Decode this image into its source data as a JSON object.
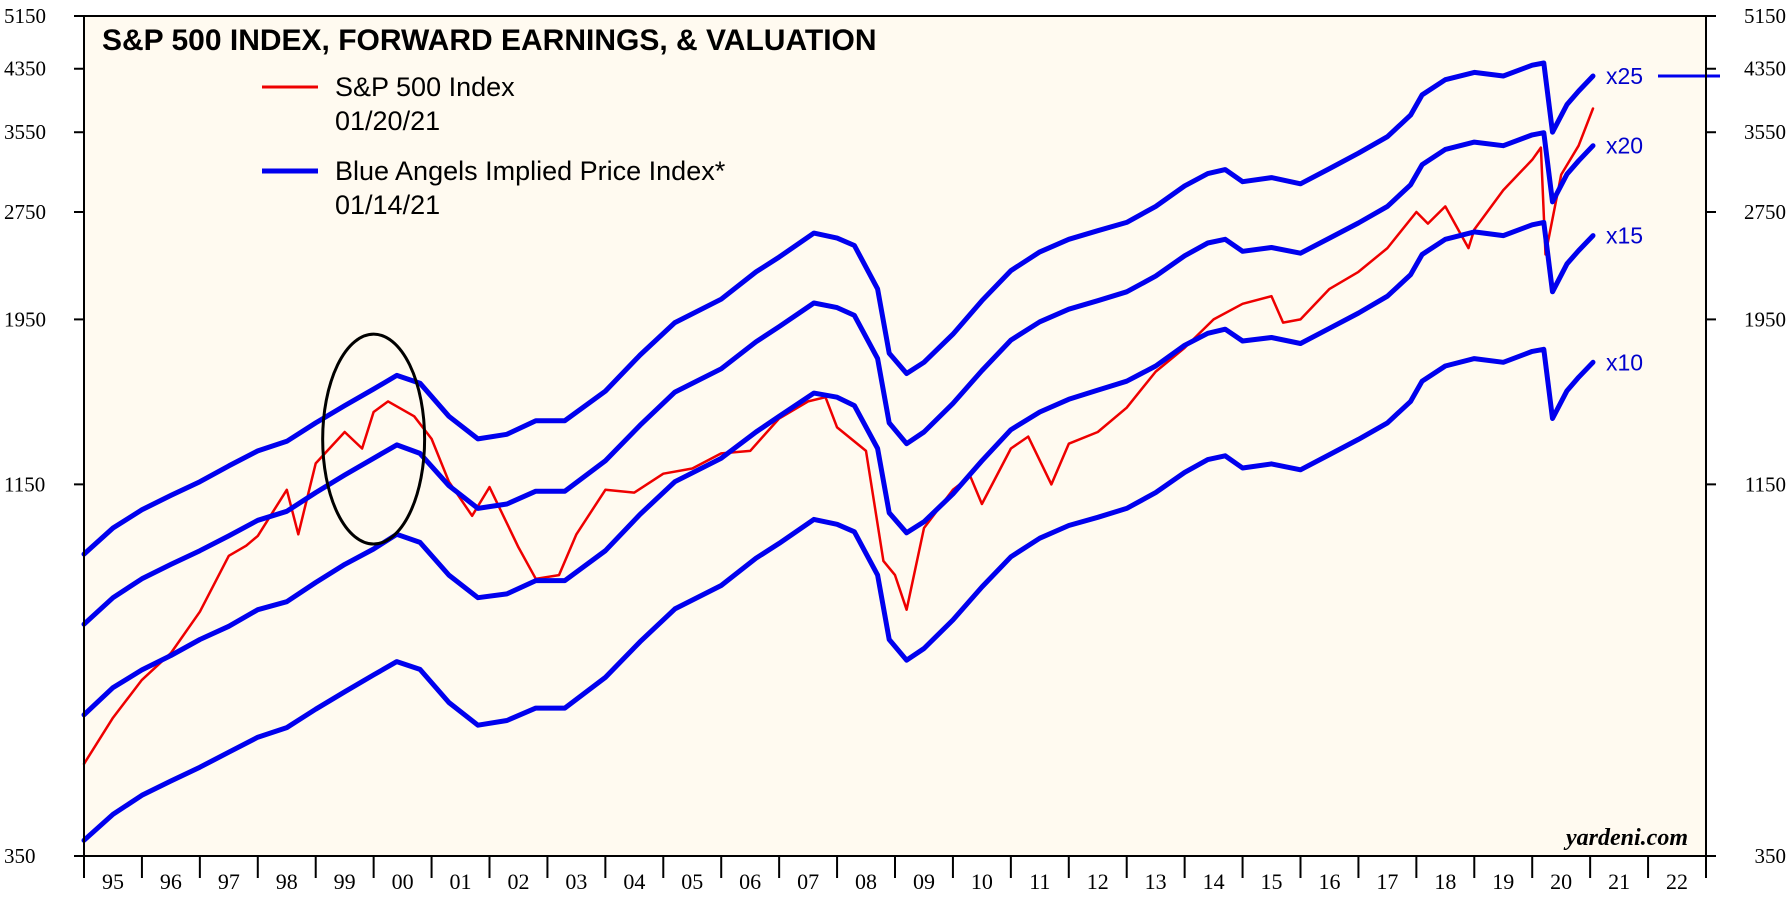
{
  "chart_data": {
    "type": "line",
    "title": "S&P 500 INDEX, FORWARD EARNINGS, & VALUATION",
    "source": "yardeni.com",
    "y_scale": "log",
    "ylim": [
      350,
      5150
    ],
    "y_ticks": [
      350,
      1150,
      1950,
      2750,
      3550,
      4350,
      5150
    ],
    "x_range": [
      1995.0,
      2023.0
    ],
    "x_tick_labels": [
      "95",
      "96",
      "97",
      "98",
      "99",
      "00",
      "01",
      "02",
      "03",
      "04",
      "05",
      "06",
      "07",
      "08",
      "09",
      "10",
      "11",
      "12",
      "13",
      "14",
      "15",
      "16",
      "17",
      "18",
      "19",
      "20",
      "21",
      "22"
    ],
    "legend": [
      {
        "label": "S&P 500 Index",
        "date": "01/20/21",
        "color": "#ee0000"
      },
      {
        "label": "Blue Angels Implied Price Index*",
        "date": "01/14/21",
        "color": "#0000ee"
      }
    ],
    "multiple_labels": [
      "x25",
      "x20",
      "x15",
      "x10"
    ],
    "colors": {
      "sp500": "#ee0000",
      "angels": "#0000ee",
      "ellipse": "#000000",
      "plot_bg": "#fffaf0"
    },
    "series": [
      {
        "name": "S&P 500 Index",
        "x": [
          1995.0,
          1995.5,
          1996.0,
          1996.5,
          1997.0,
          1997.5,
          1997.8,
          1998.0,
          1998.5,
          1998.7,
          1999.0,
          1999.5,
          1999.8,
          2000.0,
          2000.25,
          2000.7,
          2001.0,
          2001.3,
          2001.7,
          2002.0,
          2002.5,
          2002.8,
          2003.2,
          2003.5,
          2004.0,
          2004.5,
          2005.0,
          2005.5,
          2006.0,
          2006.5,
          2007.0,
          2007.5,
          2007.8,
          2008.0,
          2008.5,
          2008.8,
          2009.0,
          2009.2,
          2009.5,
          2010.0,
          2010.3,
          2010.5,
          2011.0,
          2011.3,
          2011.7,
          2012.0,
          2012.5,
          2013.0,
          2013.5,
          2014.0,
          2014.5,
          2015.0,
          2015.5,
          2015.7,
          2016.0,
          2016.5,
          2017.0,
          2017.5,
          2018.0,
          2018.2,
          2018.5,
          2018.9,
          2019.0,
          2019.5,
          2020.0,
          2020.15,
          2020.23,
          2020.5,
          2020.8,
          2021.05
        ],
        "values": [
          470,
          545,
          615,
          670,
          765,
          915,
          945,
          975,
          1130,
          980,
          1230,
          1360,
          1290,
          1450,
          1500,
          1430,
          1330,
          1160,
          1040,
          1140,
          940,
          850,
          860,
          980,
          1130,
          1120,
          1190,
          1210,
          1270,
          1280,
          1420,
          1500,
          1520,
          1380,
          1280,
          900,
          860,
          770,
          1000,
          1130,
          1180,
          1080,
          1290,
          1340,
          1150,
          1310,
          1360,
          1470,
          1650,
          1780,
          1950,
          2050,
          2100,
          1930,
          1950,
          2150,
          2270,
          2450,
          2750,
          2650,
          2800,
          2450,
          2600,
          2950,
          3250,
          3380,
          2400,
          3100,
          3400,
          3830
        ]
      },
      {
        "name": "x25",
        "x": [
          1995.0,
          1995.5,
          1996.0,
          1996.5,
          1997.0,
          1997.5,
          1998.0,
          1998.5,
          1999.0,
          1999.5,
          2000.0,
          2000.4,
          2000.8,
          2001.3,
          2001.8,
          2002.3,
          2002.8,
          2003.3,
          2004.0,
          2004.6,
          2005.2,
          2006.0,
          2006.6,
          2007.0,
          2007.6,
          2008.0,
          2008.3,
          2008.7,
          2008.9,
          2009.2,
          2009.5,
          2010.0,
          2010.5,
          2011.0,
          2011.5,
          2012.0,
          2012.5,
          2013.0,
          2013.5,
          2014.0,
          2014.4,
          2014.7,
          2015.0,
          2015.5,
          2016.0,
          2016.5,
          2017.0,
          2017.5,
          2017.9,
          2018.1,
          2018.5,
          2019.0,
          2019.5,
          2020.0,
          2020.2,
          2020.35,
          2020.6,
          2020.8,
          2021.05
        ],
        "values": [
          920,
          1000,
          1060,
          1110,
          1160,
          1220,
          1280,
          1320,
          1400,
          1480,
          1560,
          1630,
          1590,
          1430,
          1330,
          1350,
          1410,
          1410,
          1550,
          1740,
          1930,
          2080,
          2270,
          2380,
          2570,
          2530,
          2470,
          2150,
          1750,
          1640,
          1700,
          1860,
          2070,
          2280,
          2420,
          2520,
          2590,
          2660,
          2800,
          2990,
          3110,
          3150,
          3030,
          3070,
          3010,
          3160,
          3320,
          3500,
          3750,
          4000,
          4200,
          4300,
          4250,
          4400,
          4430,
          3550,
          3880,
          4050,
          4250
        ]
      },
      {
        "name": "x20",
        "x": [
          1995.0,
          1995.5,
          1996.0,
          1996.5,
          1997.0,
          1997.5,
          1998.0,
          1998.5,
          1999.0,
          1999.5,
          2000.0,
          2000.4,
          2000.8,
          2001.3,
          2001.8,
          2002.3,
          2002.8,
          2003.3,
          2004.0,
          2004.6,
          2005.2,
          2006.0,
          2006.6,
          2007.0,
          2007.6,
          2008.0,
          2008.3,
          2008.7,
          2008.9,
          2009.2,
          2009.5,
          2010.0,
          2010.5,
          2011.0,
          2011.5,
          2012.0,
          2012.5,
          2013.0,
          2013.5,
          2014.0,
          2014.4,
          2014.7,
          2015.0,
          2015.5,
          2016.0,
          2016.5,
          2017.0,
          2017.5,
          2017.9,
          2018.1,
          2018.5,
          2019.0,
          2019.5,
          2020.0,
          2020.2,
          2020.35,
          2020.6,
          2020.8,
          2021.05
        ],
        "values": [
          735,
          800,
          850,
          890,
          930,
          975,
          1025,
          1055,
          1120,
          1185,
          1250,
          1305,
          1270,
          1145,
          1065,
          1080,
          1125,
          1125,
          1240,
          1390,
          1545,
          1665,
          1815,
          1905,
          2055,
          2025,
          1975,
          1720,
          1400,
          1310,
          1360,
          1490,
          1655,
          1825,
          1935,
          2015,
          2070,
          2130,
          2240,
          2390,
          2490,
          2520,
          2425,
          2455,
          2410,
          2530,
          2655,
          2800,
          3000,
          3200,
          3360,
          3440,
          3400,
          3520,
          3545,
          2840,
          3105,
          3240,
          3400
        ]
      },
      {
        "name": "x15",
        "x": [
          1995.0,
          1995.5,
          1996.0,
          1996.5,
          1997.0,
          1997.5,
          1998.0,
          1998.5,
          1999.0,
          1999.5,
          2000.0,
          2000.4,
          2000.8,
          2001.3,
          2001.8,
          2002.3,
          2002.8,
          2003.3,
          2004.0,
          2004.6,
          2005.2,
          2006.0,
          2006.6,
          2007.0,
          2007.6,
          2008.0,
          2008.3,
          2008.7,
          2008.9,
          2009.2,
          2009.5,
          2010.0,
          2010.5,
          2011.0,
          2011.5,
          2012.0,
          2012.5,
          2013.0,
          2013.5,
          2014.0,
          2014.4,
          2014.7,
          2015.0,
          2015.5,
          2016.0,
          2016.5,
          2017.0,
          2017.5,
          2017.9,
          2018.1,
          2018.5,
          2019.0,
          2019.5,
          2020.0,
          2020.2,
          2020.35,
          2020.6,
          2020.8,
          2021.05
        ],
        "values": [
          550,
          600,
          635,
          665,
          700,
          730,
          770,
          790,
          840,
          890,
          935,
          980,
          955,
          860,
          800,
          810,
          845,
          845,
          930,
          1045,
          1160,
          1250,
          1360,
          1430,
          1540,
          1520,
          1480,
          1290,
          1050,
          985,
          1020,
          1115,
          1240,
          1370,
          1450,
          1510,
          1555,
          1600,
          1680,
          1795,
          1865,
          1890,
          1820,
          1840,
          1805,
          1895,
          1990,
          2100,
          2250,
          2400,
          2520,
          2580,
          2550,
          2640,
          2660,
          2130,
          2330,
          2430,
          2550
        ]
      },
      {
        "name": "x10",
        "x": [
          1995.0,
          1995.5,
          1996.0,
          1996.5,
          1997.0,
          1997.5,
          1998.0,
          1998.5,
          1999.0,
          1999.5,
          2000.0,
          2000.4,
          2000.8,
          2001.3,
          2001.8,
          2002.3,
          2002.8,
          2003.3,
          2004.0,
          2004.6,
          2005.2,
          2006.0,
          2006.6,
          2007.0,
          2007.6,
          2008.0,
          2008.3,
          2008.7,
          2008.9,
          2009.2,
          2009.5,
          2010.0,
          2010.5,
          2011.0,
          2011.5,
          2012.0,
          2012.5,
          2013.0,
          2013.5,
          2014.0,
          2014.4,
          2014.7,
          2015.0,
          2015.5,
          2016.0,
          2016.5,
          2017.0,
          2017.5,
          2017.9,
          2018.1,
          2018.5,
          2019.0,
          2019.5,
          2020.0,
          2020.2,
          2020.35,
          2020.6,
          2020.8,
          2021.05
        ],
        "values": [
          368,
          400,
          425,
          445,
          465,
          488,
          512,
          528,
          560,
          592,
          625,
          652,
          636,
          572,
          532,
          540,
          562,
          562,
          620,
          695,
          772,
          832,
          908,
          952,
          1028,
          1012,
          988,
          860,
          700,
          655,
          680,
          745,
          828,
          912,
          968,
          1008,
          1035,
          1065,
          1120,
          1195,
          1245,
          1260,
          1212,
          1228,
          1205,
          1265,
          1328,
          1400,
          1500,
          1600,
          1680,
          1720,
          1700,
          1760,
          1772,
          1420,
          1552,
          1620,
          1700
        ]
      }
    ],
    "annotation": {
      "type": "ellipse",
      "center": [
        2000.0,
        1400
      ],
      "x_extent": [
        1999.12,
        2000.88
      ],
      "y_extent": [
        950,
        1860
      ]
    }
  }
}
